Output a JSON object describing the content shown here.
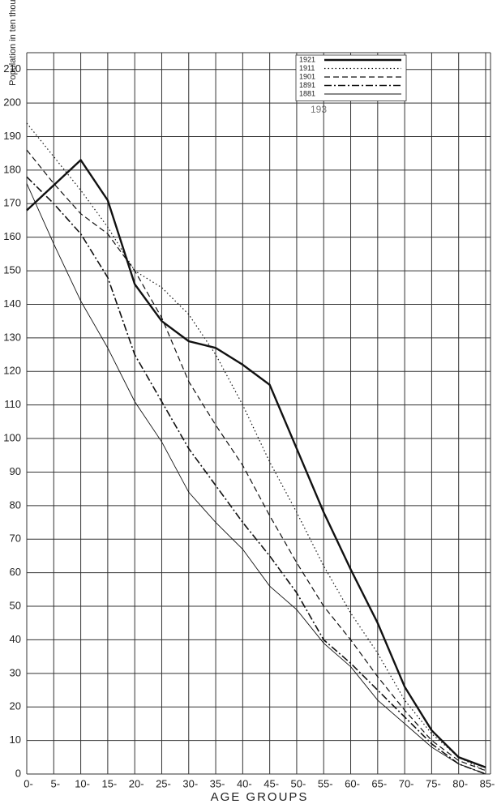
{
  "chart_data": {
    "type": "line",
    "y_label": "Population in ten thousands",
    "x_label": "AGE GROUPS",
    "annotation": "193",
    "categories": [
      "0-",
      "5-",
      "10-",
      "15-",
      "20-",
      "25-",
      "30-",
      "35-",
      "40-",
      "45-",
      "50-",
      "55-",
      "60-",
      "65-",
      "70-",
      "75-",
      "80-",
      "85-"
    ],
    "series": [
      {
        "name": "1921",
        "color": "#111111",
        "linestyle": "solid-thick",
        "values": [
          168,
          175.5,
          183,
          171,
          146,
          135,
          129,
          127,
          122,
          116,
          97,
          78,
          61,
          45,
          26,
          13,
          5,
          2
        ]
      },
      {
        "name": "1911",
        "color": "#111111",
        "linestyle": "dotted",
        "values": [
          194,
          184,
          174,
          163,
          150,
          145,
          137,
          125,
          110,
          93,
          78,
          62,
          48,
          36,
          22,
          12,
          5,
          1
        ]
      },
      {
        "name": "1901",
        "color": "#111111",
        "linestyle": "dashed",
        "values": [
          186,
          176,
          167,
          161,
          150,
          136,
          117,
          104,
          92,
          77,
          63,
          50,
          40,
          29,
          19,
          10,
          4,
          1
        ]
      },
      {
        "name": "1891",
        "color": "#111111",
        "linestyle": "dash-dot",
        "values": [
          178,
          170,
          161,
          148,
          125,
          111,
          97,
          86,
          75,
          65,
          54,
          40,
          33,
          25,
          17,
          9,
          3,
          0
        ]
      },
      {
        "name": "1881",
        "color": "#111111",
        "linestyle": "solid-thin",
        "values": [
          176,
          158,
          141,
          127,
          111,
          99,
          84,
          75,
          67,
          56,
          49,
          39,
          32,
          22,
          15,
          8,
          3,
          0
        ]
      }
    ],
    "ylim": [
      0,
      215
    ],
    "yticks": [
      0,
      10,
      20,
      30,
      40,
      50,
      60,
      70,
      80,
      90,
      100,
      110,
      120,
      130,
      140,
      150,
      160,
      170,
      180,
      190,
      200,
      210
    ],
    "grid": true,
    "legend": "top-right"
  }
}
